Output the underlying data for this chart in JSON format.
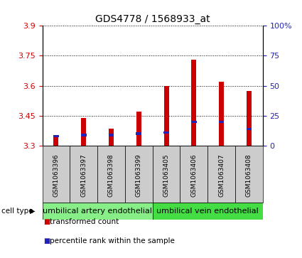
{
  "title": "GDS4778 / 1568933_at",
  "samples": [
    "GSM1063396",
    "GSM1063397",
    "GSM1063398",
    "GSM1063399",
    "GSM1063405",
    "GSM1063406",
    "GSM1063407",
    "GSM1063408"
  ],
  "transformed_counts": [
    3.355,
    3.44,
    3.385,
    3.47,
    3.6,
    3.73,
    3.62,
    3.575
  ],
  "percentile_ranks": [
    8,
    9,
    9,
    10,
    11,
    20,
    20,
    14
  ],
  "y_min": 3.3,
  "y_max": 3.9,
  "y_ticks": [
    3.3,
    3.45,
    3.6,
    3.75,
    3.9
  ],
  "y_tick_labels": [
    "3.3",
    "3.45",
    "3.6",
    "3.75",
    "3.9"
  ],
  "right_y_ticks": [
    0,
    25,
    50,
    75,
    100
  ],
  "right_y_labels": [
    "0",
    "25",
    "50",
    "75",
    "100%"
  ],
  "bar_color": "#cc0000",
  "percentile_color": "#2222bb",
  "bar_width": 0.18,
  "cell_type_groups": [
    {
      "label": "umbilical artery endothelial",
      "start": 0,
      "end": 3,
      "color": "#88ee88"
    },
    {
      "label": "umbilical vein endothelial",
      "start": 4,
      "end": 7,
      "color": "#44dd44"
    }
  ],
  "cell_type_label": "cell type",
  "legend_items": [
    {
      "label": "transformed count",
      "color": "#cc0000"
    },
    {
      "label": "percentile rank within the sample",
      "color": "#2222bb"
    }
  ],
  "background_color": "#ffffff",
  "plot_bg_color": "#ffffff",
  "tick_label_color_left": "#cc0000",
  "tick_label_color_right": "#2222bb",
  "sample_box_color": "#cccccc",
  "title_fontsize": 10,
  "tick_fontsize": 8,
  "sample_fontsize": 6.5,
  "cell_type_fontsize": 8,
  "legend_fontsize": 7.5
}
